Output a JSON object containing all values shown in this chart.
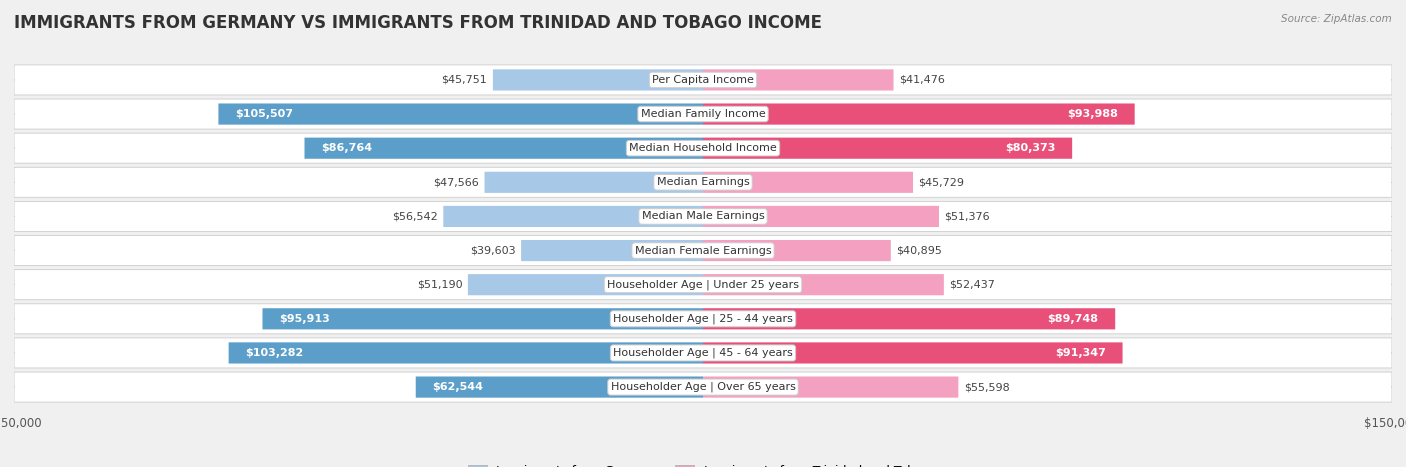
{
  "title": "IMMIGRANTS FROM GERMANY VS IMMIGRANTS FROM TRINIDAD AND TOBAGO INCOME",
  "source": "Source: ZipAtlas.com",
  "categories": [
    "Per Capita Income",
    "Median Family Income",
    "Median Household Income",
    "Median Earnings",
    "Median Male Earnings",
    "Median Female Earnings",
    "Householder Age | Under 25 years",
    "Householder Age | 25 - 44 years",
    "Householder Age | 45 - 64 years",
    "Householder Age | Over 65 years"
  ],
  "germany_values": [
    45751,
    105507,
    86764,
    47566,
    56542,
    39603,
    51190,
    95913,
    103282,
    62544
  ],
  "trinidad_values": [
    41476,
    93988,
    80373,
    45729,
    51376,
    40895,
    52437,
    89748,
    91347,
    55598
  ],
  "germany_labels": [
    "$45,751",
    "$105,507",
    "$86,764",
    "$47,566",
    "$56,542",
    "$39,603",
    "$51,190",
    "$95,913",
    "$103,282",
    "$62,544"
  ],
  "trinidad_labels": [
    "$41,476",
    "$93,988",
    "$80,373",
    "$45,729",
    "$51,376",
    "$40,895",
    "$52,437",
    "$89,748",
    "$91,347",
    "$55,598"
  ],
  "germany_color_light": "#a8c8e8",
  "germany_color_dark": "#5b9ec9",
  "trinidad_color_light": "#f4a0c0",
  "trinidad_color_dark": "#e8507a",
  "germany_threshold": 60000,
  "trinidad_threshold": 60000,
  "max_value": 150000,
  "background_color": "#f0f0f0",
  "title_fontsize": 12,
  "label_fontsize": 8,
  "category_fontsize": 8
}
